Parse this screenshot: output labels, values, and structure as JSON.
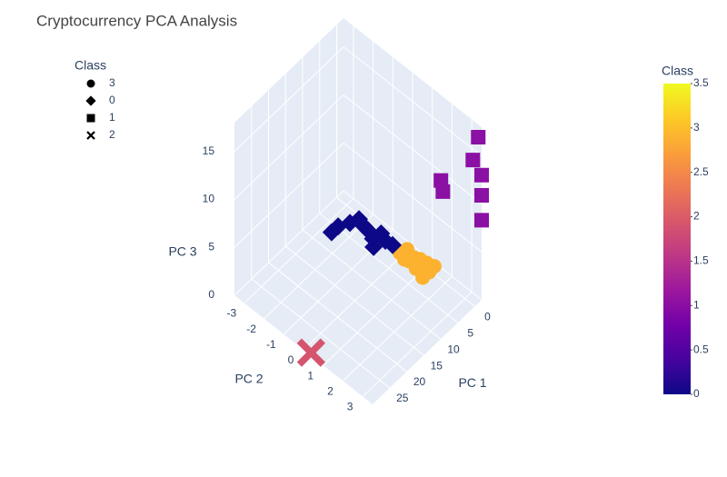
{
  "chart_data": {
    "type": "scatter3d",
    "title": "Cryptocurrency PCA Analysis",
    "x_label": "PC 1",
    "y_label": "PC 2",
    "z_label": "PC 3",
    "xlim": [
      -2,
      30
    ],
    "ylim": [
      -3.5,
      3.5
    ],
    "zlim": [
      0,
      18
    ],
    "xticks": [
      0,
      5,
      10,
      15,
      20,
      25
    ],
    "yticks": [
      -3,
      -2,
      -1,
      0,
      1,
      2,
      3
    ],
    "zticks": [
      0,
      5,
      10,
      15
    ],
    "grid": true,
    "legend_title": "Class",
    "series": [
      {
        "name": "3",
        "symbol": "circle",
        "color": "#fcb22f",
        "x": [
          3.2,
          1.8,
          2.0,
          1.6,
          1.5,
          0.9,
          3.6,
          3.7,
          3.5,
          2.4,
          3.7,
          4.0
        ],
        "y": [
          0.26,
          0.38,
          0.74,
          1.0,
          1.33,
          1.6,
          1.47,
          1.16,
          0.78,
          1.6,
          0.57,
          1.55
        ],
        "z": [
          1.4,
          1.5,
          1.3,
          1.4,
          1.5,
          1.4,
          1.3,
          1.4,
          1.5,
          1.3,
          1.4,
          1.2
        ]
      },
      {
        "name": "0",
        "symbol": "diamond",
        "color": "#0d0887",
        "x": [
          8.8,
          7.1,
          4.8,
          3.3,
          3.5,
          3.5,
          4.4,
          5.4,
          2.6,
          3.1,
          2.7
        ],
        "y": [
          -2.24,
          -2.2,
          -2.0,
          -1.8,
          -1.5,
          -1.3,
          -0.9,
          -0.7,
          -0.8,
          -0.5,
          -0.2
        ],
        "z": [
          1.4,
          1.5,
          1.4,
          1.6,
          1.4,
          1.3,
          1.4,
          1.2,
          1.5,
          1.4,
          1.3
        ]
      },
      {
        "name": "1",
        "symbol": "square",
        "color": "#8b10a4",
        "x": [
          -1,
          0,
          -2,
          3,
          3,
          -2,
          -2
        ],
        "y": [
          3.5,
          3.4,
          3.5,
          2.3,
          2.4,
          3.5,
          3.5
        ],
        "z": [
          17.3,
          15.1,
          13.0,
          12.2,
          11.2,
          10.9,
          8.3
        ]
      },
      {
        "name": "2",
        "symbol": "x",
        "color": "#d5546e",
        "x": [
          29.8
        ],
        "y": [
          0.35
        ],
        "z": [
          0.2
        ]
      }
    ],
    "colorbar": {
      "title": "Class",
      "range": [
        0,
        3.5
      ],
      "ticks": [
        0,
        0.5,
        1,
        1.5,
        2,
        2.5,
        3,
        3.5
      ],
      "colorscale": [
        "#0d0887",
        "#46039f",
        "#7201a8",
        "#9c179e",
        "#bd3786",
        "#d8576b",
        "#ed7953",
        "#fb9f3a",
        "#fdca26",
        "#f0f921"
      ]
    }
  }
}
